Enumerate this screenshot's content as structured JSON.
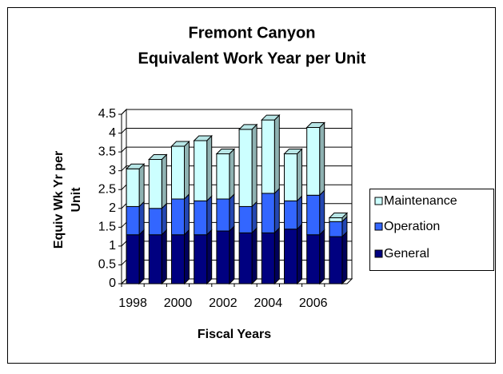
{
  "chart_data": {
    "type": "bar3d_stacked",
    "title": [
      "Fremont Canyon",
      "Equivalent Work Year per Unit"
    ],
    "y_label": [
      "Equiv Wk Yr per",
      "Unit"
    ],
    "x_label": "Fiscal Years",
    "categories": [
      "1998",
      null,
      "2000",
      null,
      "2002",
      null,
      "2004",
      null,
      "2006",
      null
    ],
    "series": [
      {
        "name": "General",
        "color": "#000080",
        "values": [
          1.3,
          1.3,
          1.3,
          1.3,
          1.4,
          1.35,
          1.35,
          1.45,
          1.3,
          1.25
        ]
      },
      {
        "name": "Operation",
        "color": "#3366ff",
        "values": [
          0.75,
          0.7,
          0.95,
          0.9,
          0.85,
          0.7,
          1.05,
          0.75,
          1.05,
          0.4
        ]
      },
      {
        "name": "Maintenance",
        "color": "#ccffff",
        "values": [
          1.0,
          1.3,
          1.4,
          1.6,
          1.2,
          2.05,
          1.95,
          1.25,
          1.8,
          0.1
        ]
      }
    ],
    "ylim": [
      0,
      4.5
    ],
    "yticks": [
      0,
      0.5,
      1,
      1.5,
      2,
      2.5,
      3,
      3.5,
      4,
      4.5
    ],
    "grid": true,
    "legend": "right"
  }
}
